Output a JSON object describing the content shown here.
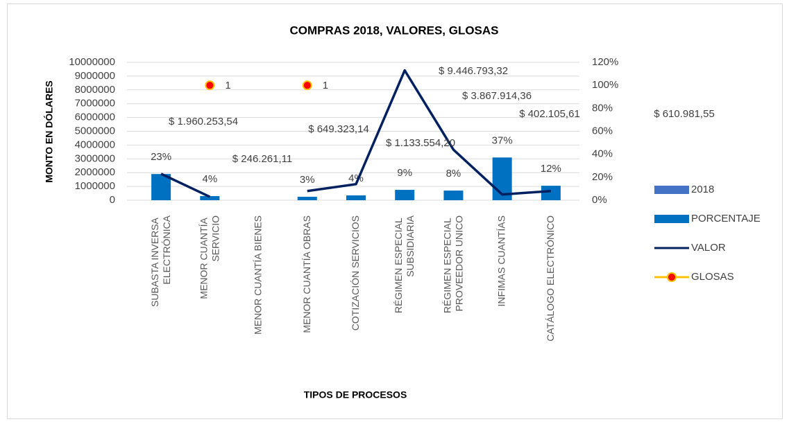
{
  "chart_data": {
    "type": "bar",
    "title": "COMPRAS 2018, VALORES, GLOSAS",
    "x_label": "TIPOS DE PROCESOS",
    "y_label": "MONTO EN DÓLARES",
    "categories": [
      "SUBASTA INVERSA ELECTRÓNICA",
      "MENOR CUANTÍA SERVICIO",
      "MENOR CUANTÍA BIENES",
      "MENOR CUANTÍA OBRAS",
      "COTIZACIÓN SERVICIOS",
      "RÉGIMEN ESPECIAL SUBSIDIARIA",
      "RÉGIMEN ESPECIAL PROVEEDOR UNICO",
      "INFIMAS CUANTÍAS",
      "CATÁLOGO ELECTRÓNICO"
    ],
    "series": [
      {
        "name": "2018",
        "type": "bar",
        "color": "#4472c4",
        "values": [
          null,
          null,
          null,
          null,
          null,
          null,
          null,
          null,
          null
        ]
      },
      {
        "name": "PORCENTAJE",
        "type": "bar",
        "color": "#0070c0",
        "values": [
          1900000,
          300000,
          null,
          250000,
          350000,
          750000,
          700000,
          3100000,
          1050000
        ],
        "labels": [
          "23%",
          "4%",
          null,
          "3%",
          "4%",
          "9%",
          "8%",
          "37%",
          "12%"
        ]
      },
      {
        "name": "VALOR",
        "type": "line",
        "axis": "y2",
        "color": "#002060",
        "values": [
          0.23,
          0.03,
          null,
          0.08,
          0.14,
          1.13,
          0.44,
          0.05,
          0.08
        ]
      },
      {
        "name": "GLOSAS",
        "type": "marker",
        "axis": "y2",
        "color": "#ffc000",
        "marker_color": "#ff0000",
        "values": [
          null,
          1,
          null,
          1,
          null,
          null,
          null,
          null,
          null
        ]
      }
    ],
    "annotations": [
      "$ 1.960.253,54",
      "$ 246.261,11",
      "$ 649.323,14",
      "$ 1.133.554,20",
      "$ 9.446.793,32",
      "$ 3.867.914,36",
      "$ 402.105,61",
      "$ 610.981,55"
    ],
    "ylim": [
      0,
      10000000
    ],
    "yticks": [
      0,
      1000000,
      2000000,
      3000000,
      4000000,
      5000000,
      6000000,
      7000000,
      8000000,
      9000000,
      10000000
    ],
    "y2lim": [
      0,
      1.2
    ],
    "y2ticks": [
      {
        "value": 0,
        "label": "0%"
      },
      {
        "value": 0.2,
        "label": "20%"
      },
      {
        "value": 0.4,
        "label": "40%"
      },
      {
        "value": 0.6,
        "label": "60%"
      },
      {
        "value": 0.8,
        "label": "80%"
      },
      {
        "value": 1,
        "label": "100%"
      },
      {
        "value": 1.2,
        "label": "120%"
      }
    ],
    "grid": true,
    "legend": "right"
  }
}
